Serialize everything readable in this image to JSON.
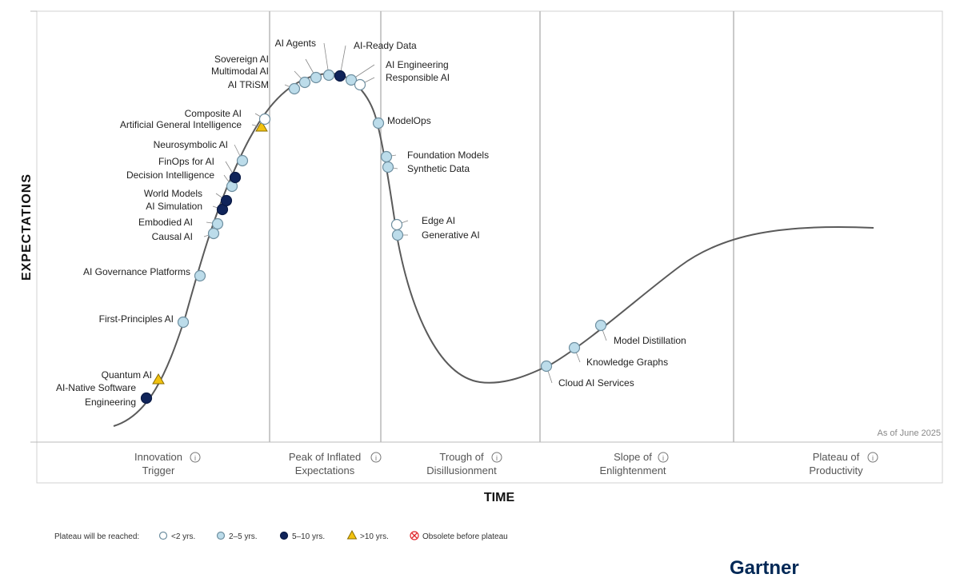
{
  "axes": {
    "y_label": "EXPECTATIONS",
    "x_label": "TIME"
  },
  "as_of": "As of June 2025",
  "brand": "Gartner",
  "colors": {
    "lt2": "#ffffff",
    "2to5": "#bcdcea",
    "5to10": "#10245a",
    "gt10": "#f2c20f",
    "curve": "#555555",
    "obsolete": "#e0262b"
  },
  "phases": [
    {
      "line1": "Innovation",
      "line2": "Trigger"
    },
    {
      "line1": "Peak of Inflated",
      "line2": "Expectations"
    },
    {
      "line1": "Trough of",
      "line2": "Disillusionment"
    },
    {
      "line1": "Slope of",
      "line2": "Enlightenment"
    },
    {
      "line1": "Plateau of",
      "line2": "Productivity"
    }
  ],
  "legend": {
    "title": "Plateau will be reached:",
    "items": [
      {
        "key": "lt2",
        "label": "<2 yrs."
      },
      {
        "key": "2to5",
        "label": "2–5 yrs."
      },
      {
        "key": "5to10",
        "label": "5–10 yrs."
      },
      {
        "key": "gt10",
        "label": ">10 yrs."
      },
      {
        "key": "obsolete",
        "label": "Obsolete before plateau"
      }
    ]
  },
  "technologies": [
    {
      "name": "AI-Native Software Engineering",
      "lines": [
        "AI-Native Software",
        "Engineering"
      ],
      "category": "5to10"
    },
    {
      "name": "Quantum AI",
      "category": "gt10"
    },
    {
      "name": "First-Principles AI",
      "category": "2to5"
    },
    {
      "name": "AI Governance Platforms",
      "category": "2to5"
    },
    {
      "name": "Causal AI",
      "category": "2to5"
    },
    {
      "name": "Embodied AI",
      "category": "2to5"
    },
    {
      "name": "AI Simulation",
      "category": "5to10"
    },
    {
      "name": "World Models",
      "category": "5to10"
    },
    {
      "name": "Decision Intelligence",
      "category": "2to5"
    },
    {
      "name": "FinOps for AI",
      "category": "5to10"
    },
    {
      "name": "Neurosymbolic AI",
      "category": "2to5"
    },
    {
      "name": "Artificial General Intelligence",
      "category": "gt10"
    },
    {
      "name": "Composite AI",
      "category": "lt2"
    },
    {
      "name": "AI TRiSM",
      "category": "2to5"
    },
    {
      "name": "Multimodal AI",
      "category": "2to5"
    },
    {
      "name": "Sovereign AI",
      "category": "2to5"
    },
    {
      "name": "AI Agents",
      "category": "2to5"
    },
    {
      "name": "AI-Ready Data",
      "category": "5to10"
    },
    {
      "name": "AI Engineering",
      "category": "2to5"
    },
    {
      "name": "Responsible AI",
      "category": "lt2"
    },
    {
      "name": "ModelOps",
      "category": "2to5"
    },
    {
      "name": "Foundation Models",
      "category": "2to5"
    },
    {
      "name": "Synthetic Data",
      "category": "2to5"
    },
    {
      "name": "Edge AI",
      "category": "lt2"
    },
    {
      "name": "Generative AI",
      "category": "2to5"
    },
    {
      "name": "Cloud AI Services",
      "category": "2to5"
    },
    {
      "name": "Knowledge Graphs",
      "category": "2to5"
    },
    {
      "name": "Model Distillation",
      "category": "2to5"
    }
  ]
}
